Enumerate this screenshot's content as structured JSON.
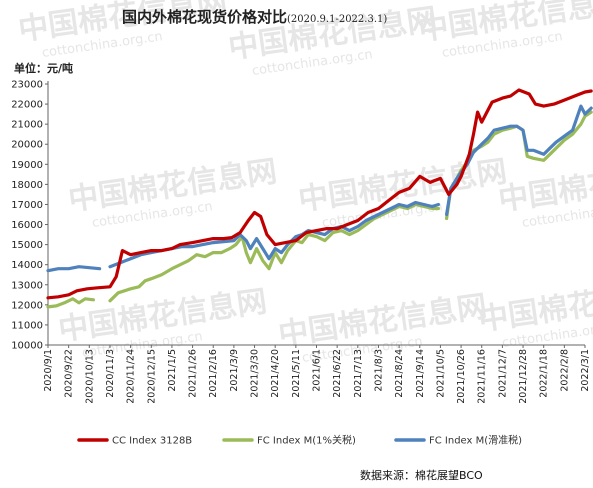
{
  "title": "国内外棉花现货价格对比",
  "subtitle": "(2020.9.1-2022.3.1)",
  "unit_label": "单位：元/吨",
  "source_label": "数据来源：棉花展望BCO",
  "watermark_text": "中国棉花信息网",
  "watermark_url": "cottonchina.org.cn",
  "chart_data": {
    "type": "line",
    "ylim": [
      10000,
      23000
    ],
    "yticks": [
      10000,
      11000,
      12000,
      13000,
      14000,
      15000,
      16000,
      17000,
      18000,
      19000,
      20000,
      21000,
      22000,
      23000
    ],
    "x_ticks": [
      "2020/9/1",
      "2020/9/22",
      "2020/10/13",
      "2020/11/3",
      "2020/11/24",
      "2020/12/15",
      "2021/1/5",
      "2021/1/26",
      "2021/2/16",
      "2021/3/9",
      "2021/3/30",
      "2021/4/20",
      "2021/5/11",
      "2021/6/1",
      "2021/6/22",
      "2021/7/13",
      "2021/8/3",
      "2021/8/24",
      "2021/9/14",
      "2021/10/5",
      "2021/10/26",
      "2021/11/16",
      "2021/12/7",
      "2021/12/28",
      "2022/1/18",
      "2022/2/8",
      "2022/3/1"
    ],
    "grid": false,
    "legend_position": "bottom",
    "series": [
      {
        "name": "CC Index 3128B",
        "color": "#c00000",
        "points": [
          [
            0,
            12350
          ],
          [
            0.5,
            12400
          ],
          [
            1,
            12500
          ],
          [
            1.4,
            12700
          ],
          [
            1.9,
            12800
          ],
          [
            2.4,
            12850
          ],
          [
            3,
            12900
          ],
          [
            3.3,
            13400
          ],
          [
            3.6,
            14700
          ],
          [
            4,
            14500
          ],
          [
            4.5,
            14600
          ],
          [
            5,
            14700
          ],
          [
            5.5,
            14700
          ],
          [
            6,
            14800
          ],
          [
            6.4,
            15000
          ],
          [
            7,
            15100
          ],
          [
            7.5,
            15200
          ],
          [
            8,
            15300
          ],
          [
            8.5,
            15300
          ],
          [
            8.9,
            15350
          ],
          [
            9.3,
            15600
          ],
          [
            9.7,
            16200
          ],
          [
            10,
            16600
          ],
          [
            10.3,
            16400
          ],
          [
            10.6,
            15500
          ],
          [
            11,
            15000
          ],
          [
            11.5,
            15100
          ],
          [
            12,
            15200
          ],
          [
            12.5,
            15600
          ],
          [
            13,
            15700
          ],
          [
            13.5,
            15800
          ],
          [
            14,
            15800
          ],
          [
            14.5,
            16000
          ],
          [
            15,
            16200
          ],
          [
            15.5,
            16600
          ],
          [
            16,
            16800
          ],
          [
            16.5,
            17200
          ],
          [
            17,
            17600
          ],
          [
            17.5,
            17800
          ],
          [
            18,
            18400
          ],
          [
            18.5,
            18100
          ],
          [
            19,
            18300
          ],
          [
            19.4,
            17500
          ],
          [
            19.8,
            18000
          ],
          [
            20,
            18400
          ],
          [
            20.4,
            19500
          ],
          [
            20.6,
            20500
          ],
          [
            20.8,
            21600
          ],
          [
            21,
            21100
          ],
          [
            21.5,
            22100
          ],
          [
            22,
            22300
          ],
          [
            22.4,
            22400
          ],
          [
            22.8,
            22700
          ],
          [
            23.3,
            22500
          ],
          [
            23.6,
            22000
          ],
          [
            24,
            21900
          ],
          [
            24.5,
            22000
          ],
          [
            25,
            22200
          ],
          [
            25.5,
            22400
          ],
          [
            26,
            22600
          ],
          [
            26.3,
            22650
          ]
        ]
      },
      {
        "name": "FC Index M(1%关税)",
        "color": "#9bbb59",
        "segments": [
          [
            [
              0,
              11900
            ],
            [
              0.4,
              11950
            ],
            [
              0.8,
              12100
            ],
            [
              1.2,
              12300
            ],
            [
              1.5,
              12100
            ],
            [
              1.8,
              12300
            ],
            [
              2.2,
              12250
            ]
          ],
          [
            [
              3,
              12200
            ],
            [
              3.4,
              12600
            ],
            [
              3.7,
              12700
            ],
            [
              4,
              12800
            ],
            [
              4.4,
              12900
            ],
            [
              4.7,
              13200
            ],
            [
              5,
              13300
            ],
            [
              5.5,
              13500
            ],
            [
              6,
              13800
            ],
            [
              6.4,
              14000
            ],
            [
              6.8,
              14200
            ],
            [
              7.2,
              14500
            ],
            [
              7.6,
              14400
            ],
            [
              8,
              14600
            ],
            [
              8.4,
              14600
            ],
            [
              8.8,
              14800
            ],
            [
              9.1,
              15000
            ],
            [
              9.4,
              15400
            ],
            [
              9.6,
              14600
            ],
            [
              9.8,
              14100
            ],
            [
              10.1,
              14800
            ],
            [
              10.4,
              14200
            ],
            [
              10.7,
              13800
            ],
            [
              11,
              14600
            ],
            [
              11.3,
              14100
            ],
            [
              11.6,
              14700
            ],
            [
              12,
              15200
            ],
            [
              12.3,
              15100
            ],
            [
              12.6,
              15500
            ],
            [
              13,
              15400
            ],
            [
              13.4,
              15200
            ],
            [
              13.8,
              15600
            ],
            [
              14.2,
              15700
            ],
            [
              14.6,
              15500
            ],
            [
              15,
              15700
            ],
            [
              15.4,
              16000
            ],
            [
              15.8,
              16300
            ],
            [
              16.2,
              16500
            ],
            [
              16.6,
              16700
            ],
            [
              17,
              16900
            ],
            [
              17.4,
              16800
            ],
            [
              17.8,
              17000
            ],
            [
              18.2,
              16900
            ],
            [
              18.6,
              16800
            ],
            [
              18.9,
              16800
            ]
          ],
          [
            [
              19.3,
              16300
            ],
            [
              19.5,
              17800
            ],
            [
              19.8,
              18300
            ],
            [
              20,
              18700
            ],
            [
              20.3,
              19100
            ],
            [
              20.6,
              19700
            ],
            [
              21,
              19900
            ],
            [
              21.3,
              20100
            ],
            [
              21.6,
              20500
            ],
            [
              22,
              20700
            ],
            [
              22.4,
              20800
            ],
            [
              22.7,
              20900
            ],
            [
              23,
              20700
            ],
            [
              23.2,
              19400
            ],
            [
              23.5,
              19300
            ],
            [
              24,
              19200
            ],
            [
              24.3,
              19500
            ],
            [
              24.6,
              19800
            ],
            [
              25,
              20200
            ],
            [
              25.4,
              20500
            ],
            [
              25.8,
              21000
            ],
            [
              26,
              21400
            ],
            [
              26.3,
              21600
            ]
          ]
        ]
      },
      {
        "name": "FC Index M(滑准税)",
        "color": "#4f81bd",
        "segments": [
          [
            [
              0,
              13700
            ],
            [
              0.5,
              13800
            ],
            [
              1,
              13800
            ],
            [
              1.5,
              13900
            ],
            [
              2,
              13850
            ],
            [
              2.5,
              13800
            ]
          ],
          [
            [
              3,
              13900
            ],
            [
              3.5,
              14100
            ],
            [
              4,
              14300
            ],
            [
              4.5,
              14500
            ],
            [
              5,
              14600
            ],
            [
              5.5,
              14700
            ],
            [
              6,
              14800
            ],
            [
              6.5,
              14900
            ],
            [
              7,
              14900
            ],
            [
              7.5,
              15000
            ],
            [
              8,
              15100
            ],
            [
              8.5,
              15150
            ],
            [
              9,
              15200
            ],
            [
              9.3,
              15500
            ],
            [
              9.6,
              15200
            ],
            [
              9.8,
              14800
            ],
            [
              10.1,
              15300
            ],
            [
              10.4,
              14800
            ],
            [
              10.7,
              14300
            ],
            [
              11,
              14800
            ],
            [
              11.3,
              14600
            ],
            [
              11.6,
              15000
            ],
            [
              12,
              15400
            ],
            [
              12.3,
              15500
            ],
            [
              12.6,
              15700
            ],
            [
              13,
              15600
            ],
            [
              13.4,
              15500
            ],
            [
              13.8,
              15800
            ],
            [
              14.2,
              15900
            ],
            [
              14.6,
              15700
            ],
            [
              15,
              15900
            ],
            [
              15.4,
              16200
            ],
            [
              15.8,
              16400
            ],
            [
              16.2,
              16600
            ],
            [
              16.6,
              16800
            ],
            [
              17,
              17000
            ],
            [
              17.4,
              16900
            ],
            [
              17.8,
              17100
            ],
            [
              18.2,
              17000
            ],
            [
              18.6,
              16900
            ],
            [
              18.9,
              17000
            ]
          ],
          [
            [
              19.3,
              16500
            ],
            [
              19.5,
              17800
            ],
            [
              19.8,
              18300
            ],
            [
              20,
              18600
            ],
            [
              20.3,
              19000
            ],
            [
              20.6,
              19600
            ],
            [
              21,
              20000
            ],
            [
              21.3,
              20300
            ],
            [
              21.6,
              20700
            ],
            [
              22,
              20800
            ],
            [
              22.4,
              20900
            ],
            [
              22.7,
              20900
            ],
            [
              23,
              20700
            ],
            [
              23.2,
              19700
            ],
            [
              23.5,
              19700
            ],
            [
              24,
              19500
            ],
            [
              24.3,
              19800
            ],
            [
              24.6,
              20100
            ],
            [
              25,
              20400
            ],
            [
              25.4,
              20700
            ],
            [
              25.8,
              21900
            ],
            [
              26,
              21500
            ],
            [
              26.3,
              21800
            ]
          ]
        ]
      }
    ]
  }
}
